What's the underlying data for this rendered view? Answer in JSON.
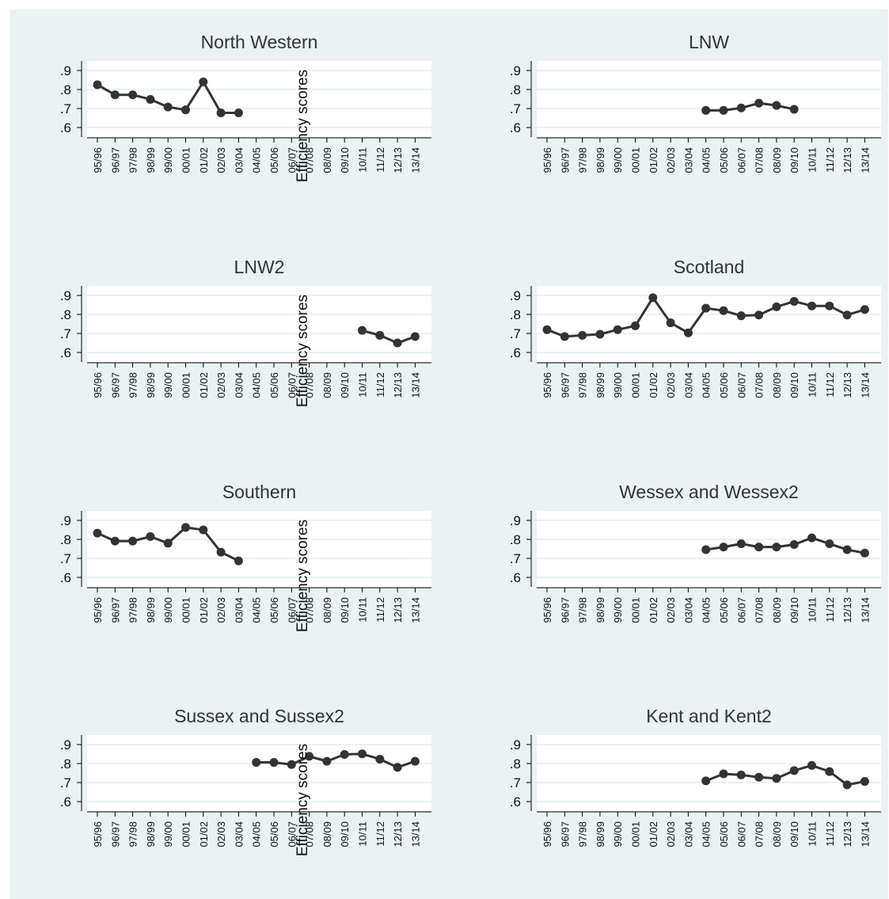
{
  "colors": {
    "background": "#eaf2f3",
    "plot_bg": "#ffffff",
    "gridline": "#ffffff",
    "line": "#333333",
    "axis": "#000000"
  },
  "chart_data": {
    "type": "line",
    "ylabel": "Efficiency scores",
    "categories": [
      "95/96",
      "96/97",
      "97/98",
      "98/99",
      "99/00",
      "00/01",
      "01/02",
      "02/03",
      "03/04",
      "04/05",
      "05/06",
      "06/07",
      "07/08",
      "08/09",
      "09/10",
      "10/11",
      "11/12",
      "12/13",
      "13/14"
    ],
    "yticks": [
      ".6",
      ".7",
      ".8",
      ".9"
    ],
    "ytick_values": [
      0.6,
      0.7,
      0.8,
      0.9
    ],
    "ylim": [
      0.55,
      0.95
    ],
    "grid": true,
    "panels": [
      {
        "title": "North Western",
        "values": [
          0.825,
          0.772,
          0.772,
          0.748,
          0.708,
          0.693,
          0.84,
          0.677,
          0.677,
          null,
          null,
          null,
          null,
          null,
          null,
          null,
          null,
          null,
          null
        ]
      },
      {
        "title": "LNW",
        "values": [
          null,
          null,
          null,
          null,
          null,
          null,
          null,
          null,
          null,
          0.69,
          0.69,
          0.703,
          0.728,
          0.716,
          0.696,
          null,
          null,
          null,
          null
        ]
      },
      {
        "title": "LNW2",
        "values": [
          null,
          null,
          null,
          null,
          null,
          null,
          null,
          null,
          null,
          null,
          null,
          null,
          null,
          null,
          null,
          0.716,
          0.69,
          0.65,
          0.684
        ]
      },
      {
        "title": "Scotland",
        "values": [
          0.72,
          0.684,
          0.69,
          0.696,
          0.72,
          0.74,
          0.888,
          0.756,
          0.703,
          0.833,
          0.82,
          0.793,
          0.797,
          0.84,
          0.869,
          0.845,
          0.845,
          0.797,
          0.826
        ]
      },
      {
        "title": "Southern",
        "values": [
          0.833,
          0.791,
          0.791,
          0.815,
          0.78,
          0.863,
          0.85,
          0.733,
          0.687,
          null,
          null,
          null,
          null,
          null,
          null,
          null,
          null,
          null,
          null
        ]
      },
      {
        "title": "Wessex and Wessex2",
        "values": [
          null,
          null,
          null,
          null,
          null,
          null,
          null,
          null,
          null,
          0.746,
          0.76,
          0.777,
          0.76,
          0.76,
          0.773,
          0.808,
          0.777,
          0.746,
          0.728
        ]
      },
      {
        "title": "Sussex and Sussex2",
        "values": [
          null,
          null,
          null,
          null,
          null,
          null,
          null,
          null,
          null,
          0.806,
          0.806,
          0.795,
          0.838,
          0.812,
          0.848,
          0.851,
          0.823,
          0.78,
          0.812
        ]
      },
      {
        "title": "Kent and Kent2",
        "values": [
          null,
          null,
          null,
          null,
          null,
          null,
          null,
          null,
          null,
          0.709,
          0.746,
          0.74,
          0.728,
          0.722,
          0.763,
          0.79,
          0.758,
          0.688,
          0.706
        ]
      }
    ]
  }
}
